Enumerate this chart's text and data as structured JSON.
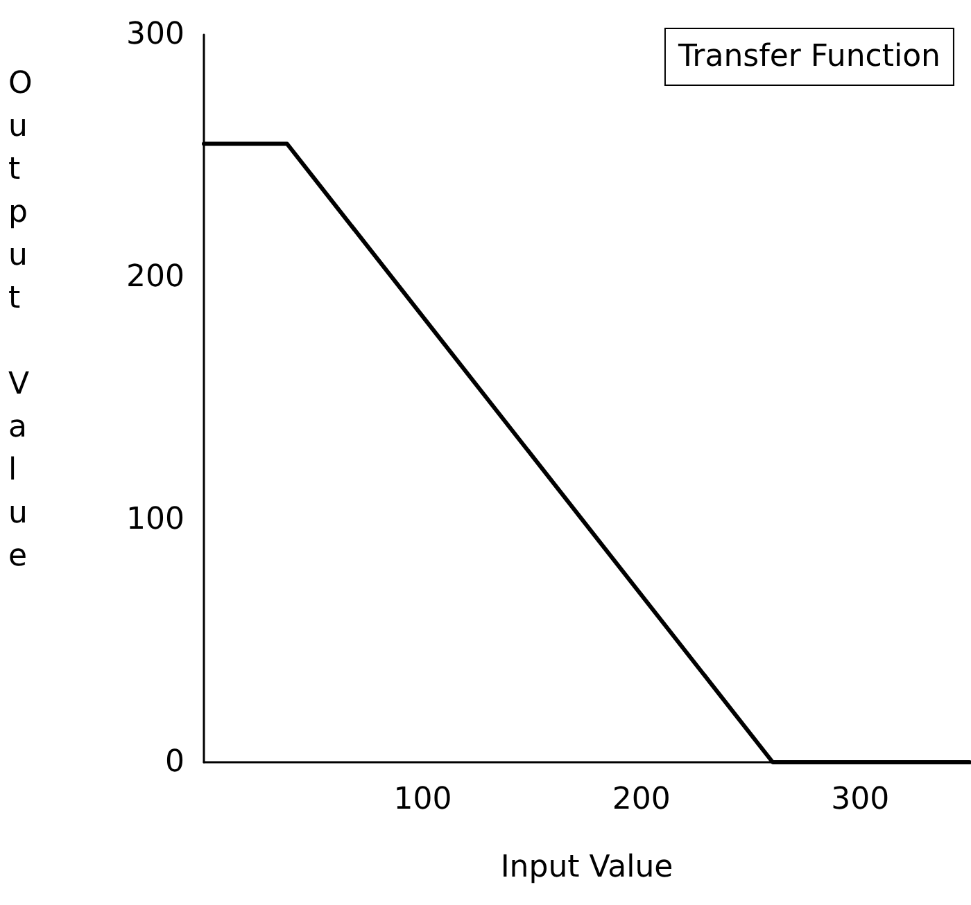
{
  "chart_data": {
    "type": "line",
    "title": "Transfer Function",
    "xlabel": "Input Value",
    "ylabel": "Output Value",
    "x": [
      0,
      38,
      260,
      350
    ],
    "series": [
      {
        "color": "#000000",
        "values": [
          255,
          255,
          0,
          0
        ]
      }
    ],
    "xlim": [
      0,
      350
    ],
    "xticks": [
      100,
      200,
      300
    ],
    "ylim": [
      0,
      300
    ],
    "yticks": [
      0,
      100,
      200,
      300
    ],
    "grid": false,
    "marker": "none",
    "line_style": "solid"
  }
}
